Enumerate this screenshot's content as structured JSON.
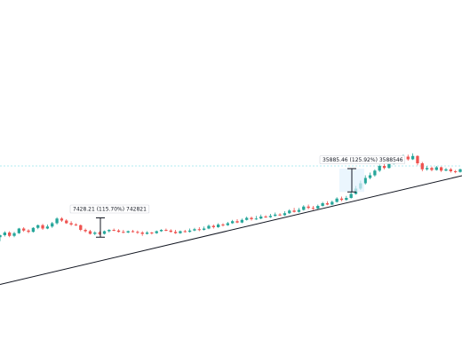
{
  "chart_data": {
    "type": "candlestick",
    "title": "",
    "xlabel": "",
    "ylabel": "",
    "grid": false,
    "up_color": "#26a69a",
    "down_color": "#ef5350",
    "trendline_color": "#131722",
    "level_line_color": "#b2ebf2",
    "ylim": [
      0,
      400
    ],
    "candles": [
      [
        97,
        100,
        91,
        101
      ],
      [
        100,
        104,
        98,
        106
      ],
      [
        104,
        99,
        97,
        106
      ],
      [
        99,
        103,
        97,
        105
      ],
      [
        103,
        110,
        102,
        111
      ],
      [
        110,
        107,
        105,
        112
      ],
      [
        107,
        105,
        103,
        109
      ],
      [
        105,
        111,
        104,
        112
      ],
      [
        111,
        115,
        109,
        116
      ],
      [
        115,
        110,
        108,
        117
      ],
      [
        110,
        113,
        109,
        116
      ],
      [
        113,
        118,
        111,
        120
      ],
      [
        118,
        125,
        116,
        127
      ],
      [
        125,
        122,
        120,
        127
      ],
      [
        122,
        118,
        117,
        124
      ],
      [
        118,
        116,
        114,
        121
      ],
      [
        116,
        115,
        114,
        118
      ],
      [
        115,
        108,
        106,
        116
      ],
      [
        108,
        106,
        104,
        110
      ],
      [
        106,
        102,
        101,
        108
      ],
      [
        102,
        104,
        100,
        106
      ],
      [
        104,
        102,
        100,
        106
      ],
      [
        102,
        106,
        101,
        107
      ],
      [
        106,
        108,
        104,
        109
      ],
      [
        108,
        107,
        106,
        110
      ],
      [
        107,
        105,
        104,
        109
      ],
      [
        105,
        104,
        103,
        108
      ],
      [
        104,
        106,
        103,
        107
      ],
      [
        106,
        105,
        104,
        108
      ],
      [
        105,
        104,
        102,
        107
      ],
      [
        104,
        102,
        99,
        106
      ],
      [
        102,
        104,
        101,
        106
      ],
      [
        104,
        103,
        101,
        105
      ],
      [
        103,
        106,
        102,
        107
      ],
      [
        106,
        108,
        105,
        109
      ],
      [
        108,
        107,
        106,
        110
      ],
      [
        107,
        105,
        104,
        109
      ],
      [
        105,
        103,
        102,
        108
      ],
      [
        103,
        106,
        102,
        107
      ],
      [
        106,
        105,
        104,
        108
      ],
      [
        105,
        107,
        104,
        110
      ],
      [
        107,
        109,
        106,
        111
      ],
      [
        109,
        108,
        106,
        112
      ],
      [
        108,
        110,
        107,
        113
      ],
      [
        110,
        114,
        109,
        116
      ],
      [
        114,
        112,
        110,
        116
      ],
      [
        112,
        116,
        111,
        118
      ],
      [
        116,
        115,
        113,
        118
      ],
      [
        115,
        118,
        114,
        120
      ],
      [
        118,
        121,
        117,
        123
      ],
      [
        121,
        119,
        118,
        124
      ],
      [
        119,
        123,
        118,
        125
      ],
      [
        123,
        126,
        122,
        128
      ],
      [
        126,
        124,
        122,
        128
      ],
      [
        124,
        125,
        123,
        129
      ],
      [
        125,
        128,
        124,
        131
      ],
      [
        128,
        127,
        126,
        130
      ],
      [
        127,
        129,
        126,
        132
      ],
      [
        129,
        131,
        128,
        134
      ],
      [
        131,
        130,
        129,
        133
      ],
      [
        130,
        133,
        129,
        136
      ],
      [
        133,
        137,
        132,
        139
      ],
      [
        137,
        135,
        134,
        141
      ],
      [
        135,
        138,
        134,
        141
      ],
      [
        138,
        143,
        137,
        145
      ],
      [
        143,
        141,
        139,
        146
      ],
      [
        141,
        140,
        138,
        144
      ],
      [
        140,
        144,
        139,
        146
      ],
      [
        144,
        148,
        143,
        150
      ],
      [
        148,
        146,
        145,
        151
      ],
      [
        146,
        150,
        145,
        152
      ],
      [
        150,
        155,
        149,
        157
      ],
      [
        155,
        153,
        151,
        158
      ],
      [
        153,
        156,
        152,
        159
      ],
      [
        156,
        162,
        155,
        166
      ],
      [
        162,
        170,
        161,
        174
      ],
      [
        170,
        178,
        168,
        182
      ],
      [
        178,
        186,
        176,
        190
      ],
      [
        186,
        190,
        184,
        194
      ],
      [
        190,
        197,
        188,
        199
      ],
      [
        197,
        204,
        195,
        206
      ],
      [
        204,
        201,
        199,
        207
      ],
      [
        201,
        207,
        200,
        209
      ],
      [
        207,
        215,
        206,
        217
      ],
      [
        215,
        212,
        210,
        218
      ],
      [
        212,
        218,
        211,
        221
      ],
      [
        218,
        214,
        212,
        221
      ],
      [
        214,
        219,
        213,
        223
      ],
      [
        219,
        208,
        205,
        220
      ],
      [
        208,
        199,
        196,
        210
      ],
      [
        199,
        201,
        197,
        204
      ],
      [
        201,
        198,
        196,
        203
      ],
      [
        198,
        202,
        197,
        204
      ],
      [
        202,
        197,
        195,
        203
      ],
      [
        197,
        199,
        196,
        201
      ],
      [
        199,
        196,
        194,
        201
      ],
      [
        196,
        195,
        193,
        198
      ],
      [
        195,
        199,
        194,
        200
      ]
    ],
    "trendline": [
      [
        0,
        26
      ],
      [
        93,
        182
      ]
    ],
    "measurements": [
      {
        "label": "7428.21 (115.70%) 742821",
        "from_value": 97,
        "to_value": 126
      },
      {
        "label": "35885.46 (125.92%) 3588546",
        "from_value": 165,
        "to_value": 200
      }
    ],
    "level_line_value": 204
  }
}
